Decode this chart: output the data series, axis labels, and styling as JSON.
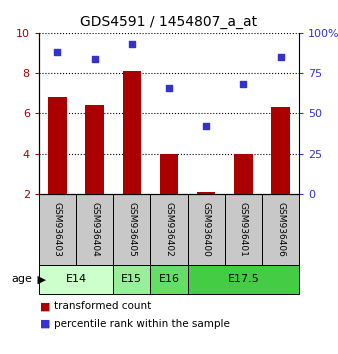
{
  "title": "GDS4591 / 1454807_a_at",
  "samples": [
    "GSM936403",
    "GSM936404",
    "GSM936405",
    "GSM936402",
    "GSM936400",
    "GSM936401",
    "GSM936406"
  ],
  "transformed_count": [
    6.8,
    6.4,
    8.1,
    4.0,
    2.1,
    4.0,
    6.3
  ],
  "percentile_rank": [
    88,
    84,
    93,
    66,
    42,
    68,
    85
  ],
  "ylim_left": [
    2,
    10
  ],
  "ylim_right": [
    0,
    100
  ],
  "yticks_left": [
    2,
    4,
    6,
    8,
    10
  ],
  "yticks_right": [
    0,
    25,
    50,
    75,
    100
  ],
  "ytick_right_labels": [
    "0",
    "25",
    "50",
    "75",
    "100%"
  ],
  "bar_color": "#aa0000",
  "dot_color": "#3333cc",
  "age_groups": [
    {
      "label": "E14",
      "spans": [
        0,
        1
      ],
      "color": "#ccffcc"
    },
    {
      "label": "E15",
      "spans": [
        2
      ],
      "color": "#99ee99"
    },
    {
      "label": "E16",
      "spans": [
        3
      ],
      "color": "#66dd66"
    },
    {
      "label": "E17.5",
      "spans": [
        4,
        5,
        6
      ],
      "color": "#44cc44"
    }
  ],
  "sample_box_color": "#c8c8c8",
  "legend_bar_label": "transformed count",
  "legend_dot_label": "percentile rank within the sample",
  "age_label": "age",
  "bar_width": 0.5
}
